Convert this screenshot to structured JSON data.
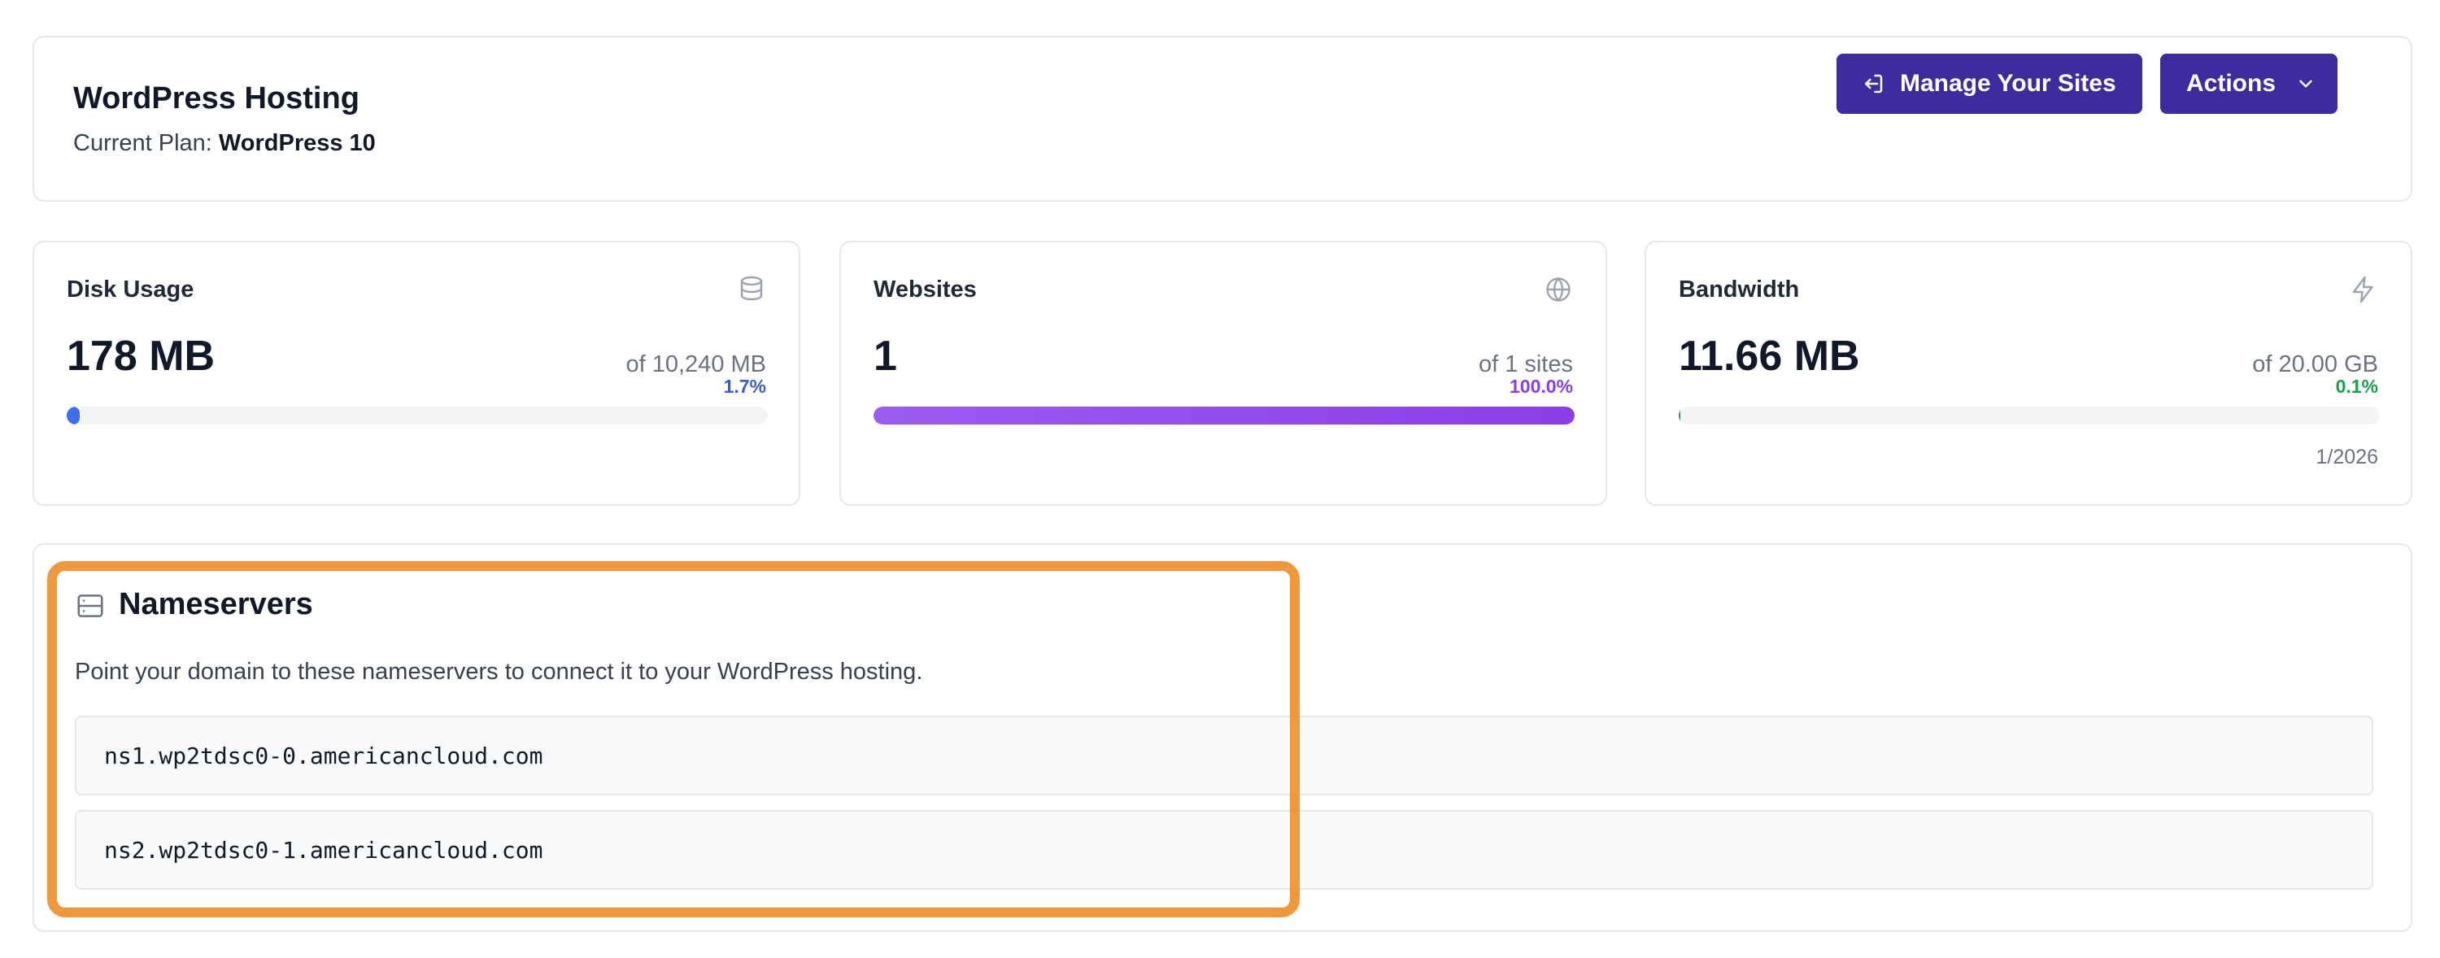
{
  "header": {
    "title": "WordPress Hosting",
    "plan_label": "Current Plan:",
    "plan_name": "WordPress 10",
    "manage_button": "Manage Your Sites",
    "actions_button": "Actions"
  },
  "stats": {
    "disk": {
      "label": "Disk Usage",
      "value": "178 MB",
      "of": "of 10,240 MB",
      "percent": "1.7%",
      "fraction": 0.017,
      "color": "#3b6ef0",
      "icon": "database-icon"
    },
    "websites": {
      "label": "Websites",
      "value": "1",
      "of": "of 1 sites",
      "percent": "100.0%",
      "fraction": 1.0,
      "color": "#8b3ee8",
      "icon": "globe-icon"
    },
    "bandwidth": {
      "label": "Bandwidth",
      "value": "11.66 MB",
      "of": "of 20.00 GB",
      "percent": "0.1%",
      "fraction": 0.001,
      "color": "#16a34a",
      "footnote": "1/2026",
      "icon": "lightning-icon"
    }
  },
  "nameservers": {
    "title": "Nameservers",
    "description": "Point your domain to these nameservers to connect it to your WordPress hosting.",
    "entries": [
      "ns1.wp2tdsc0-0.americancloud.com",
      "ns2.wp2tdsc0-1.americancloud.com"
    ],
    "icon": "server-icon"
  },
  "colors": {
    "primary": "#3f2a9e",
    "highlight": "#f0993a"
  }
}
